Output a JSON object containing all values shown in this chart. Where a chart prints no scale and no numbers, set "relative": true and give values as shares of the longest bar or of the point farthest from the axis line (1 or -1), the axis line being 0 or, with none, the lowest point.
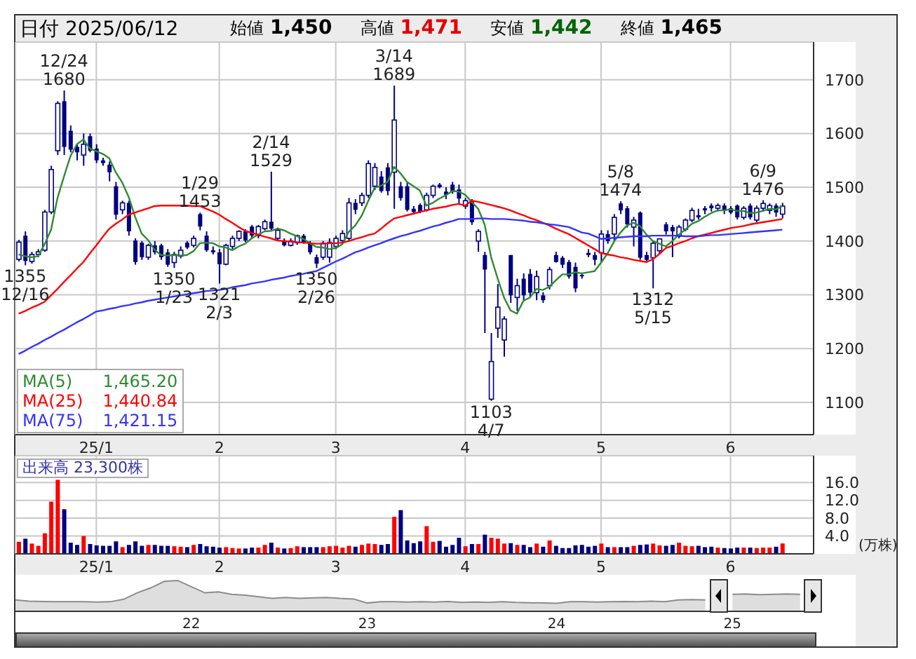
{
  "chart_data": [
    {
      "type": "candlestick",
      "title": "日付 2025/06/12",
      "color": "#000080",
      "grid": true,
      "legend": "bottom left",
      "ylim": [
        1040,
        1770
      ],
      "yticks": [
        1100,
        1200,
        1300,
        1400,
        1500,
        1600,
        1700
      ],
      "annotations": [
        "始値 1,450",
        "高値 1,471",
        "安値 1,442",
        "終値 1,465",
        {
          "text": "12/24 1680",
          "y": 1680
        },
        {
          "text": "1355 12/16",
          "y": 1355
        },
        {
          "text": "1350 1/23",
          "y": 1350
        },
        {
          "text": "1/29 1453",
          "y": 1453
        },
        {
          "text": "1321 2/3",
          "y": 1321
        },
        {
          "text": "2/14 1529",
          "y": 1529
        },
        {
          "text": "1350 2/26",
          "y": 1350
        },
        {
          "text": "3/14 1689",
          "y": 1689
        },
        {
          "text": "1103 4/7",
          "y": 1103
        },
        {
          "text": "5/8 1474",
          "y": 1474
        },
        {
          "text": "1312 5/15",
          "y": 1312
        },
        {
          "text": "6/9 1476",
          "y": 1476
        }
      ],
      "categories": [
        null,
        null,
        null,
        null,
        null,
        null,
        null,
        null,
        null,
        null,
        null,
        null,
        "25/1",
        null,
        null,
        null,
        null,
        null,
        null,
        null,
        null,
        null,
        null,
        null,
        null,
        null,
        null,
        null,
        null,
        null,
        null,
        "2",
        null,
        null,
        null,
        null,
        null,
        null,
        null,
        null,
        null,
        null,
        null,
        null,
        null,
        null,
        null,
        null,
        null,
        "3",
        null,
        null,
        null,
        null,
        null,
        null,
        null,
        null,
        null,
        null,
        null,
        null,
        null,
        null,
        null,
        null,
        null,
        null,
        null,
        "4",
        null,
        null,
        null,
        null,
        null,
        null,
        null,
        null,
        null,
        null,
        null,
        null,
        null,
        null,
        null,
        null,
        null,
        null,
        null,
        null,
        "5",
        null,
        null,
        null,
        null,
        null,
        null,
        null,
        null,
        null,
        null,
        null,
        null,
        null,
        null,
        null,
        null,
        null,
        null,
        null,
        "6",
        null,
        null,
        null,
        null,
        null,
        null,
        null,
        null
      ],
      "ohlc": [
        [
          1366,
          1402,
          1362,
          1398
        ],
        [
          1410,
          1418,
          1355,
          1363
        ],
        [
          1362,
          1380,
          1358,
          1375
        ],
        [
          1375,
          1385,
          1370,
          1380
        ],
        [
          1383,
          1458,
          1380,
          1454
        ],
        [
          1454,
          1540,
          1450,
          1533
        ],
        [
          1568,
          1660,
          1560,
          1656
        ],
        [
          1660,
          1680,
          1560,
          1575
        ],
        [
          1605,
          1615,
          1565,
          1570
        ],
        [
          1575,
          1580,
          1550,
          1565
        ],
        [
          1560,
          1600,
          1540,
          1580
        ],
        [
          1595,
          1600,
          1565,
          1568
        ],
        [
          1572,
          1580,
          1545,
          1550
        ],
        [
          1550,
          1555,
          1540,
          1545
        ],
        [
          1542,
          1548,
          1511,
          1528
        ],
        [
          1502,
          1510,
          1440,
          1449
        ],
        [
          1458,
          1475,
          1450,
          1471
        ],
        [
          1471,
          1475,
          1410,
          1418
        ],
        [
          1401,
          1405,
          1356,
          1361
        ],
        [
          1397,
          1400,
          1365,
          1370
        ],
        [
          1370,
          1395,
          1365,
          1392
        ],
        [
          1392,
          1400,
          1375,
          1379
        ],
        [
          1392,
          1395,
          1365,
          1370
        ],
        [
          1379,
          1385,
          1352,
          1356
        ],
        [
          1360,
          1380,
          1350,
          1375
        ],
        [
          1372,
          1390,
          1368,
          1383
        ],
        [
          1397,
          1400,
          1385,
          1388
        ],
        [
          1392,
          1410,
          1388,
          1405
        ],
        [
          1450,
          1453,
          1420,
          1427
        ],
        [
          1410,
          1418,
          1380,
          1383
        ],
        [
          1383,
          1390,
          1375,
          1379
        ],
        [
          1379,
          1385,
          1321,
          1357
        ],
        [
          1357,
          1395,
          1355,
          1392
        ],
        [
          1390,
          1410,
          1385,
          1405
        ],
        [
          1405,
          1420,
          1400,
          1418
        ],
        [
          1418,
          1422,
          1398,
          1401
        ],
        [
          1427,
          1430,
          1405,
          1410
        ],
        [
          1410,
          1430,
          1405,
          1427
        ],
        [
          1423,
          1440,
          1420,
          1436
        ],
        [
          1436,
          1529,
          1420,
          1423
        ],
        [
          1405,
          1425,
          1400,
          1420
        ],
        [
          1401,
          1405,
          1390,
          1392
        ],
        [
          1392,
          1405,
          1390,
          1400
        ],
        [
          1397,
          1412,
          1393,
          1410
        ],
        [
          1410,
          1413,
          1395,
          1397
        ],
        [
          1397,
          1400,
          1375,
          1379
        ],
        [
          1370,
          1375,
          1350,
          1358
        ],
        [
          1370,
          1400,
          1365,
          1396
        ],
        [
          1370,
          1405,
          1360,
          1397
        ],
        [
          1390,
          1410,
          1385,
          1405
        ],
        [
          1401,
          1420,
          1395,
          1414
        ],
        [
          1405,
          1480,
          1400,
          1471
        ],
        [
          1471,
          1478,
          1450,
          1458
        ],
        [
          1471,
          1490,
          1465,
          1485
        ],
        [
          1485,
          1550,
          1480,
          1544
        ],
        [
          1502,
          1545,
          1495,
          1537
        ],
        [
          1520,
          1530,
          1490,
          1493
        ],
        [
          1537,
          1545,
          1485,
          1493
        ],
        [
          1528,
          1689,
          1460,
          1625
        ],
        [
          1502,
          1510,
          1475,
          1480
        ],
        [
          1502,
          1508,
          1455,
          1458
        ],
        [
          1460,
          1465,
          1450,
          1454
        ],
        [
          1467,
          1470,
          1452,
          1454
        ],
        [
          1458,
          1490,
          1455,
          1485
        ],
        [
          1485,
          1505,
          1480,
          1502
        ],
        [
          1505,
          1508,
          1498,
          1500
        ],
        [
          1492,
          1500,
          1478,
          1486
        ],
        [
          1505,
          1510,
          1488,
          1492
        ],
        [
          1496,
          1505,
          1470,
          1479
        ],
        [
          1465,
          1480,
          1460,
          1475
        ],
        [
          1475,
          1478,
          1430,
          1435
        ],
        [
          1400,
          1422,
          1380,
          1418
        ],
        [
          1374,
          1380,
          1229,
          1347
        ],
        [
          1106,
          1229,
          1103,
          1176
        ],
        [
          1238,
          1320,
          1220,
          1277
        ],
        [
          1216,
          1260,
          1185,
          1255
        ],
        [
          1374,
          1374,
          1285,
          1299
        ],
        [
          1295,
          1330,
          1270,
          1317
        ],
        [
          1330,
          1340,
          1290,
          1299
        ],
        [
          1339,
          1348,
          1295,
          1304
        ],
        [
          1304,
          1345,
          1290,
          1334
        ],
        [
          1299,
          1305,
          1285,
          1290
        ],
        [
          1317,
          1352,
          1310,
          1347
        ],
        [
          1374,
          1380,
          1360,
          1361
        ],
        [
          1369,
          1372,
          1350,
          1356
        ],
        [
          1361,
          1365,
          1330,
          1334
        ],
        [
          1352,
          1360,
          1305,
          1312
        ],
        [
          1337,
          1340,
          1330,
          1335
        ],
        [
          1378,
          1385,
          1370,
          1374
        ],
        [
          1374,
          1380,
          1355,
          1365
        ],
        [
          1378,
          1420,
          1360,
          1413
        ],
        [
          1413,
          1420,
          1395,
          1400
        ],
        [
          1413,
          1450,
          1400,
          1444
        ],
        [
          1470,
          1474,
          1450,
          1457
        ],
        [
          1461,
          1465,
          1425,
          1431
        ],
        [
          1426,
          1445,
          1390,
          1439
        ],
        [
          1453,
          1455,
          1365,
          1369
        ],
        [
          1374,
          1380,
          1360,
          1365
        ],
        [
          1369,
          1400,
          1312,
          1396
        ],
        [
          1382,
          1405,
          1375,
          1404
        ],
        [
          1431,
          1435,
          1412,
          1418
        ],
        [
          1426,
          1430,
          1370,
          1418
        ],
        [
          1409,
          1430,
          1405,
          1426
        ],
        [
          1422,
          1442,
          1418,
          1439
        ],
        [
          1439,
          1462,
          1435,
          1457
        ],
        [
          1448,
          1460,
          1440,
          1444
        ],
        [
          1461,
          1465,
          1450,
          1457
        ],
        [
          1466,
          1470,
          1455,
          1461
        ],
        [
          1461,
          1470,
          1455,
          1466
        ],
        [
          1466,
          1470,
          1450,
          1457
        ],
        [
          1461,
          1465,
          1450,
          1453
        ],
        [
          1466,
          1468,
          1440,
          1444
        ],
        [
          1444,
          1465,
          1440,
          1461
        ],
        [
          1466,
          1470,
          1440,
          1444
        ],
        [
          1439,
          1466,
          1435,
          1461
        ],
        [
          1461,
          1476,
          1455,
          1470
        ],
        [
          1457,
          1470,
          1450,
          1466
        ],
        [
          1466,
          1470,
          1445,
          1453
        ],
        [
          1450,
          1471,
          1442,
          1465
        ]
      ],
      "series": [
        {
          "name": "MA(5) 1,465.20",
          "type": "line",
          "color": "#2e8b2e",
          "values": [
            1375,
            1372,
            1370,
            1372,
            1394,
            1421,
            1480,
            1520,
            1558,
            1580,
            1589,
            1572,
            1567,
            1562,
            1554,
            1528,
            1509,
            1482,
            1445,
            1414,
            1402,
            1384,
            1374,
            1373,
            1374,
            1373,
            1374,
            1381,
            1396,
            1397,
            1396,
            1390,
            1388,
            1383,
            1390,
            1395,
            1405,
            1412,
            1418,
            1419,
            1423,
            1420,
            1414,
            1409,
            1404,
            1396,
            1389,
            1388,
            1385,
            1387,
            1394,
            1417,
            1429,
            1447,
            1474,
            1499,
            1503,
            1510,
            1538,
            1526,
            1510,
            1502,
            1494,
            1466,
            1471,
            1479,
            1485,
            1493,
            1492,
            1486,
            1473,
            1460,
            1431,
            1370,
            1331,
            1295,
            1271,
            1265,
            1289,
            1295,
            1311,
            1309,
            1315,
            1327,
            1338,
            1338,
            1342,
            1340,
            1342,
            1344,
            1360,
            1377,
            1399,
            1416,
            1429,
            1434,
            1428,
            1412,
            1400,
            1395,
            1390,
            1400,
            1412,
            1421,
            1432,
            1437,
            1445,
            1452,
            1457,
            1457,
            1459,
            1456,
            1456,
            1452,
            1453,
            1456,
            1460,
            1459,
            1465.2
          ]
        },
        {
          "name": "MA(25) 1,440.84",
          "type": "line",
          "color": "#ff0000",
          "values": [
            1265,
            1270,
            1276,
            1281,
            1287,
            1299,
            1311,
            1324,
            1336,
            1349,
            1361,
            1377,
            1392,
            1408,
            1423,
            1432,
            1440,
            1449,
            1453,
            1457,
            1461,
            1465,
            1466,
            1466,
            1466,
            1466,
            1466,
            1465,
            1465,
            1460,
            1455,
            1449,
            1441,
            1434,
            1426,
            1419,
            1415,
            1412,
            1408,
            1405,
            1401,
            1400,
            1399,
            1398,
            1397,
            1396,
            1395,
            1395,
            1396,
            1396,
            1397,
            1400,
            1404,
            1407,
            1411,
            1414,
            1423,
            1433,
            1442,
            1445,
            1448,
            1451,
            1454,
            1457,
            1460,
            1462,
            1464,
            1467,
            1469,
            1466,
            1475,
            1473,
            1470,
            1467,
            1464,
            1461,
            1457,
            1452,
            1448,
            1443,
            1439,
            1434,
            1429,
            1423,
            1418,
            1413,
            1406,
            1399,
            1392,
            1385,
            1378,
            1375,
            1373,
            1370,
            1368,
            1365,
            1363,
            1361,
            1366,
            1376,
            1387,
            1391,
            1396,
            1400,
            1405,
            1409,
            1412,
            1415,
            1418,
            1421,
            1424,
            1426,
            1428,
            1431,
            1433,
            1435,
            1437,
            1439,
            1440.84
          ]
        },
        {
          "name": "MA(75) 1,421.15",
          "type": "line",
          "color": "#3333ff",
          "values": [
            1190,
            1196,
            1203,
            1209,
            1216,
            1222,
            1229,
            1235,
            1242,
            1249,
            1255,
            1262,
            1269,
            1271,
            1274,
            1276,
            1279,
            1281,
            1284,
            1286,
            1289,
            1291,
            1293,
            1295,
            1297,
            1299,
            1301,
            1303,
            1305,
            1307,
            1308,
            1309,
            1311,
            1314,
            1316,
            1318,
            1321,
            1323,
            1325,
            1328,
            1330,
            1332,
            1335,
            1337,
            1339,
            1342,
            1344,
            1350,
            1356,
            1362,
            1367,
            1373,
            1379,
            1383,
            1388,
            1392,
            1396,
            1401,
            1405,
            1409,
            1412,
            1416,
            1419,
            1423,
            1427,
            1430,
            1434,
            1437,
            1441,
            1441,
            1441,
            1442,
            1442,
            1441,
            1441,
            1441,
            1440,
            1439,
            1438,
            1436,
            1435,
            1433,
            1431,
            1430,
            1428,
            1426,
            1421,
            1416,
            1414,
            1409,
            1404,
            1405,
            1406,
            1407,
            1408,
            1409,
            1409,
            1409,
            1410,
            1410,
            1410,
            1410,
            1410,
            1409,
            1409,
            1409,
            1410,
            1411,
            1411,
            1412,
            1413,
            1414,
            1415,
            1416,
            1417,
            1418,
            1419,
            1420,
            1421.15
          ]
        }
      ]
    },
    {
      "type": "bar",
      "title": "出来高 23,300株",
      "ylabel": "(万株)",
      "grid": true,
      "ylim": [
        0,
        22
      ],
      "yticks": [
        {
          "value": 4,
          "label": "4.0"
        },
        {
          "value": 8,
          "label": "8.0"
        },
        {
          "value": 12,
          "label": "12.0"
        },
        {
          "value": 16,
          "label": "16.0"
        }
      ],
      "categories": [
        null,
        null,
        null,
        null,
        null,
        null,
        null,
        null,
        null,
        null,
        null,
        null,
        "25/1",
        null,
        null,
        null,
        null,
        null,
        null,
        null,
        null,
        null,
        null,
        null,
        null,
        null,
        null,
        null,
        null,
        null,
        null,
        "2",
        null,
        null,
        null,
        null,
        null,
        null,
        null,
        null,
        null,
        null,
        null,
        null,
        null,
        null,
        null,
        null,
        null,
        "3",
        null,
        null,
        null,
        null,
        null,
        null,
        null,
        null,
        null,
        null,
        null,
        null,
        null,
        null,
        null,
        null,
        null,
        null,
        null,
        "4",
        null,
        null,
        null,
        null,
        null,
        null,
        null,
        null,
        null,
        null,
        null,
        null,
        null,
        null,
        null,
        null,
        null,
        null,
        null,
        null,
        "5",
        null,
        null,
        null,
        null,
        null,
        null,
        null,
        null,
        null,
        null,
        null,
        null,
        null,
        null,
        null,
        null,
        null,
        null,
        null,
        "6",
        null,
        null,
        null,
        null,
        null,
        null,
        null,
        null
      ],
      "values": [
        2.7,
        3.4,
        2.3,
        1.8,
        4.6,
        11.7,
        16.6,
        10.0,
        2.5,
        2.0,
        4.0,
        2.2,
        1.9,
        1.8,
        1.8,
        2.8,
        1.5,
        2.0,
        2.8,
        1.8,
        2.0,
        2.0,
        1.8,
        1.8,
        1.7,
        1.6,
        1.5,
        2.0,
        2.2,
        1.7,
        1.6,
        1.4,
        1.5,
        1.3,
        1.2,
        1.2,
        1.4,
        1.4,
        2.0,
        2.5,
        1.4,
        1.2,
        1.3,
        1.7,
        1.5,
        1.5,
        1.5,
        1.5,
        1.7,
        1.8,
        1.4,
        1.8,
        1.6,
        2.0,
        2.3,
        2.2,
        2.0,
        2.2,
        8.3,
        9.8,
        3.0,
        2.4,
        2.8,
        6.2,
        2.7,
        2.9,
        1.6,
        2.0,
        3.6,
        1.7,
        2.2,
        2.2,
        4.3,
        3.6,
        3.4,
        2.3,
        2.4,
        2.0,
        2.0,
        1.5,
        2.3,
        1.6,
        3.0,
        1.8,
        1.3,
        1.3,
        1.9,
        2.0,
        1.6,
        1.8,
        2.3,
        1.5,
        1.5,
        1.5,
        1.5,
        1.8,
        2.0,
        2.1,
        2.3,
        1.9,
        1.8,
        2.0,
        2.5,
        1.8,
        1.7,
        1.8,
        1.5,
        1.6,
        1.4,
        1.3,
        1.2,
        1.4,
        1.4,
        1.4,
        1.3,
        1.4,
        1.4,
        1.6,
        2.33
      ],
      "colors": [
        "#ff0000",
        "#000080",
        "#ff0000",
        "#ff0000",
        "#ff0000",
        "#ff0000",
        "#ff0000",
        "#000080",
        "#000080",
        "#000080",
        "#ff0000",
        "#000080",
        "#000080",
        "#000080",
        "#000080",
        "#000080",
        "#ff0000",
        "#000080",
        "#000080",
        "#000080",
        "#ff0000",
        "#000080",
        "#000080",
        "#000080",
        "#ff0000",
        "#ff0000",
        "#000080",
        "#ff0000",
        "#000080",
        "#000080",
        "#000080",
        "#000080",
        "#ff0000",
        "#ff0000",
        "#ff0000",
        "#000080",
        "#000080",
        "#ff0000",
        "#ff0000",
        "#000080",
        "#ff0000",
        "#000080",
        "#ff0000",
        "#ff0000",
        "#000080",
        "#000080",
        "#000080",
        "#ff0000",
        "#ff0000",
        "#ff0000",
        "#ff0000",
        "#ff0000",
        "#000080",
        "#ff0000",
        "#ff0000",
        "#ff0000",
        "#000080",
        "#000080",
        "#ff0000",
        "#000080",
        "#000080",
        "#000080",
        "#000080",
        "#ff0000",
        "#ff0000",
        "#000080",
        "#000080",
        "#000080",
        "#000080",
        "#ff0000",
        "#000080",
        "#ff0000",
        "#000080",
        "#ff0000",
        "#ff0000",
        "#ff0000",
        "#000080",
        "#ff0000",
        "#000080",
        "#000080",
        "#ff0000",
        "#000080",
        "#ff0000",
        "#000080",
        "#000080",
        "#000080",
        "#000080",
        "#000080",
        "#000080",
        "#000080",
        "#ff0000",
        "#000080",
        "#ff0000",
        "#000080",
        "#000080",
        "#ff0000",
        "#000080",
        "#000080",
        "#ff0000",
        "#ff0000",
        "#000080",
        "#000080",
        "#ff0000",
        "#ff0000",
        "#ff0000",
        "#000080",
        "#000080",
        "#000080",
        "#ff0000",
        "#000080",
        "#000080",
        "#000080",
        "#ff0000",
        "#000080",
        "#ff0000",
        "#ff0000",
        "#ff0000",
        "#000080",
        "#ff0000"
      ]
    },
    {
      "type": "area",
      "relative": true,
      "tick_labels": "x",
      "color": "#8c8c8c",
      "categories": [
        null,
        null,
        null,
        null,
        null,
        null,
        null,
        null,
        null,
        null,
        null,
        null,
        null,
        "22",
        null,
        null,
        null,
        null,
        null,
        null,
        null,
        null,
        null,
        null,
        null,
        null,
        "23",
        null,
        null,
        null,
        null,
        null,
        null,
        null,
        null,
        null,
        null,
        null,
        null,
        null,
        "24",
        null,
        null,
        null,
        null,
        null,
        null,
        null,
        null,
        null,
        null,
        null,
        null,
        "25",
        null,
        null,
        null,
        null,
        null,
        null
      ],
      "values": [
        0.37,
        0.33,
        0.32,
        0.31,
        0.31,
        0.31,
        0.3,
        0.31,
        0.39,
        0.6,
        0.76,
        0.97,
        1.0,
        0.8,
        0.6,
        0.63,
        0.55,
        0.52,
        0.47,
        0.42,
        0.45,
        0.42,
        0.44,
        0.45,
        0.42,
        0.4,
        0.27,
        0.31,
        0.31,
        0.3,
        0.31,
        0.3,
        0.32,
        0.29,
        0.3,
        0.29,
        0.31,
        0.29,
        0.28,
        0.27,
        0.26,
        0.31,
        0.31,
        0.3,
        0.31,
        0.32,
        0.31,
        0.33,
        0.31,
        0.37,
        0.38,
        0.37,
        null,
        0.55,
        0.56,
        0.54,
        0.55,
        0.56,
        0.55,
        null
      ]
    }
  ]
}
